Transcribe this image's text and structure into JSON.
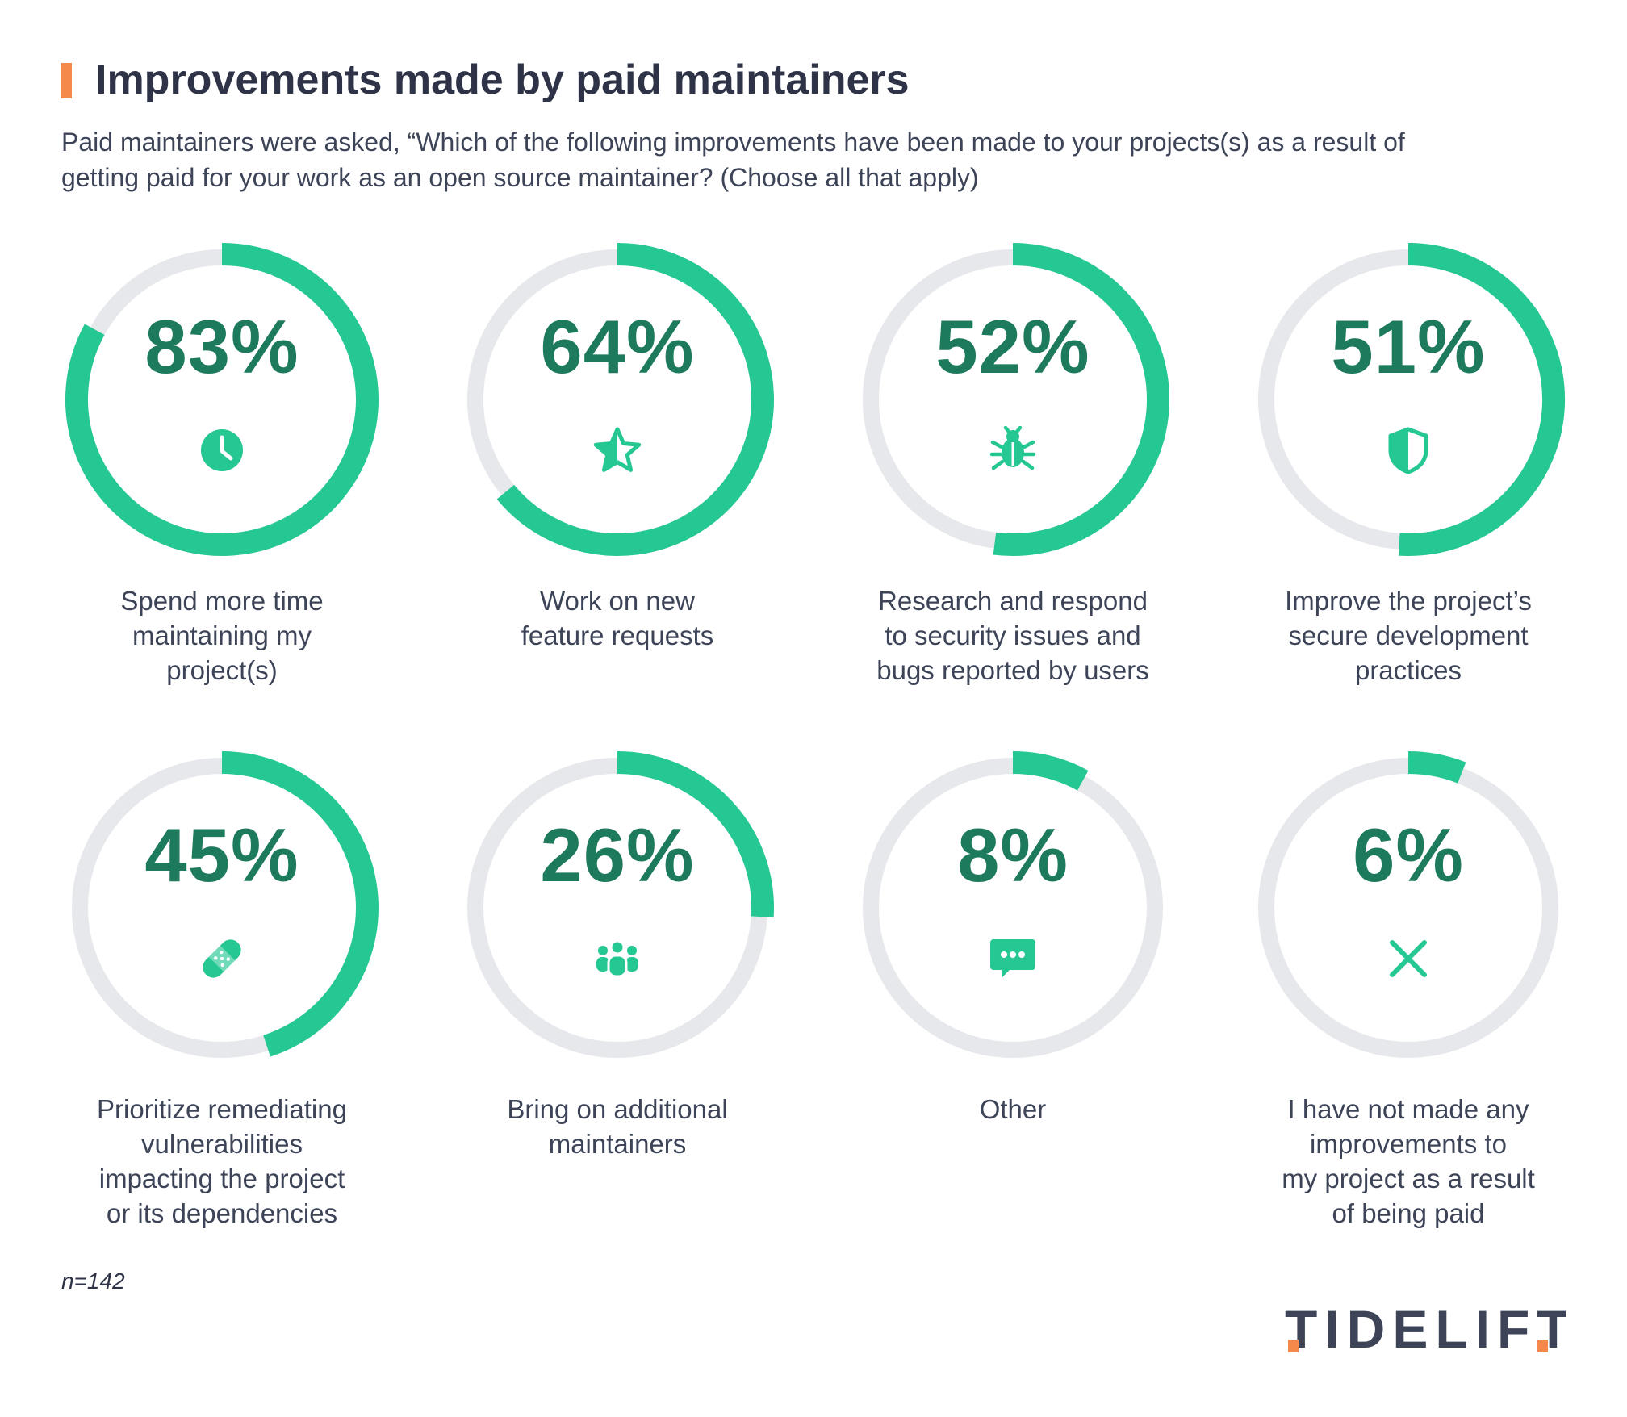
{
  "header": {
    "title": "Improvements made by paid maintainers",
    "subtitle": "Paid maintainers were asked, “Which of the following improvements have been made to your projects(s) as a result of getting paid for your work as an open source maintainer? (Choose all that apply)"
  },
  "chart_data": {
    "type": "radial-progress",
    "title": "Improvements made by paid maintainers",
    "unit": "%",
    "max": 100,
    "items": [
      {
        "value": 83,
        "value_label": "83%",
        "label": "Spend more time\nmaintaining my\nproject(s)",
        "icon": "clock-icon"
      },
      {
        "value": 64,
        "value_label": "64%",
        "label": "Work on new\nfeature requests",
        "icon": "star-icon"
      },
      {
        "value": 52,
        "value_label": "52%",
        "label": "Research and respond\nto security issues and\nbugs reported by users",
        "icon": "bug-icon"
      },
      {
        "value": 51,
        "value_label": "51%",
        "label": "Improve the project’s\nsecure development\npractices",
        "icon": "shield-icon"
      },
      {
        "value": 45,
        "value_label": "45%",
        "label": "Prioritize remediating\nvulnerabilities\nimpacting the project\nor its dependencies",
        "icon": "bandage-icon"
      },
      {
        "value": 26,
        "value_label": "26%",
        "label": "Bring on additional\nmaintainers",
        "icon": "team-icon"
      },
      {
        "value": 8,
        "value_label": "8%",
        "label": "Other",
        "icon": "chat-icon"
      },
      {
        "value": 6,
        "value_label": "6%",
        "label": "I have not made any\nimprovements to\nmy project as a result\nof being paid",
        "icon": "x-icon"
      }
    ]
  },
  "footer": {
    "note": "n=142",
    "brand": "TIDELIFT"
  },
  "colors": {
    "accent": "#f4894b",
    "ring_fill": "#25c792",
    "ring_track": "#e6e8ec",
    "value_text": "#1e7a5c",
    "body_text": "#3d4458"
  }
}
